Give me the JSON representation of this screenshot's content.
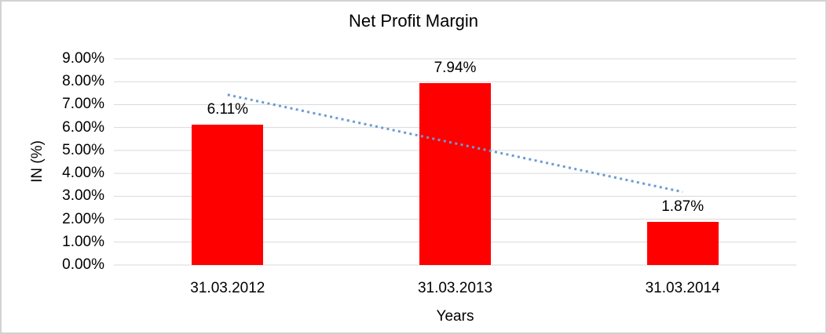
{
  "chart_data": {
    "type": "bar",
    "title": "Net Profit Margin",
    "xlabel": "Years",
    "ylabel": "IN (%)",
    "categories": [
      "31.03.2012",
      "31.03.2013",
      "31.03.2014"
    ],
    "values": [
      6.11,
      7.94,
      1.87
    ],
    "value_labels": [
      "6.11%",
      "7.94%",
      "1.87%"
    ],
    "ylim": [
      0,
      9
    ],
    "ytick_step": 1,
    "ytick_labels": [
      "9.00%",
      "8.00%",
      "7.00%",
      "6.00%",
      "5.00%",
      "4.00%",
      "3.00%",
      "2.00%",
      "1.00%",
      "0.00%"
    ],
    "grid": "horizontal",
    "legend": "none",
    "colors": {
      "bar": "#ff0000",
      "gridline": "#d9d9d9",
      "trendline": "#6d9bd1",
      "text": "#000000",
      "background": "#ffffff"
    },
    "trendline": {
      "kind": "linear",
      "style": "dotted",
      "start_category_index": 0,
      "end_category_index": 2,
      "start_value": 7.43,
      "end_value": 3.19
    }
  }
}
